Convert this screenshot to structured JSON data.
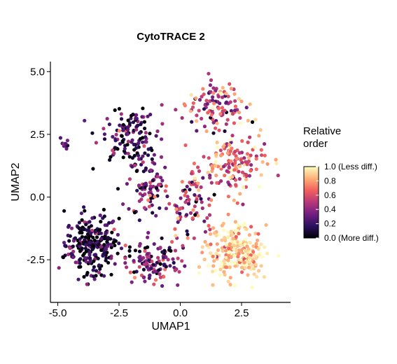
{
  "chart_data": {
    "type": "scatter",
    "title": "CytoTRACE 2",
    "xlabel": "UMAP1",
    "ylabel": "UMAP2",
    "xlim": [
      -5.3,
      4.5
    ],
    "ylim": [
      -4.2,
      5.4
    ],
    "xticks": [
      -5.0,
      -2.5,
      0.0,
      2.5
    ],
    "xtick_labels": [
      "-5.0",
      "-2.5",
      "0.0",
      "2.5"
    ],
    "yticks": [
      -2.5,
      0.0,
      2.5,
      5.0
    ],
    "ytick_labels": [
      "-2.5",
      "0.0",
      "2.5",
      "5.0"
    ],
    "grid": false,
    "legend": {
      "title_lines": [
        "Relative",
        "order"
      ],
      "placement": "right",
      "colormap": "magma",
      "range": [
        0.0,
        1.0
      ],
      "ticks": [
        1.0,
        0.8,
        0.6,
        0.4,
        0.2,
        0.0
      ],
      "tick_labels": [
        "1.0 (Less diff.)",
        "0.8",
        "0.6",
        "0.4",
        "0.2",
        "0.0 (More diff.)"
      ],
      "colors": [
        "#000004",
        "#2c115f",
        "#721f81",
        "#b73779",
        "#f1605d",
        "#feb078",
        "#fcfdbf"
      ]
    },
    "clusters": [
      {
        "x": -3.6,
        "y": -1.9,
        "sx": 0.9,
        "sy": 1.0,
        "n": 260,
        "value": 0.12,
        "spread": 0.18
      },
      {
        "x": -2.2,
        "y": 2.5,
        "sx": 1.0,
        "sy": 0.9,
        "n": 130,
        "value": 0.2,
        "spread": 0.18
      },
      {
        "x": -1.3,
        "y": 0.5,
        "sx": 0.7,
        "sy": 1.1,
        "n": 90,
        "value": 0.3,
        "spread": 0.2
      },
      {
        "x": -1.2,
        "y": -2.6,
        "sx": 0.9,
        "sy": 0.7,
        "n": 120,
        "value": 0.28,
        "spread": 0.22
      },
      {
        "x": 0.4,
        "y": -0.3,
        "sx": 0.8,
        "sy": 1.3,
        "n": 90,
        "value": 0.45,
        "spread": 0.2
      },
      {
        "x": 1.5,
        "y": 3.6,
        "sx": 1.0,
        "sy": 0.8,
        "n": 110,
        "value": 0.55,
        "spread": 0.22
      },
      {
        "x": 2.2,
        "y": 1.3,
        "sx": 1.1,
        "sy": 1.0,
        "n": 150,
        "value": 0.65,
        "spread": 0.2
      },
      {
        "x": 2.3,
        "y": -2.2,
        "sx": 1.0,
        "sy": 0.9,
        "n": 230,
        "value": 0.88,
        "spread": 0.12
      },
      {
        "x": -4.7,
        "y": 2.1,
        "sx": 0.15,
        "sy": 0.2,
        "n": 10,
        "value": 0.3,
        "spread": 0.2
      }
    ],
    "bounds": {
      "xmin": -4.95,
      "xmax": 4.05,
      "ymin": -3.9,
      "ymax": 5.0
    }
  }
}
